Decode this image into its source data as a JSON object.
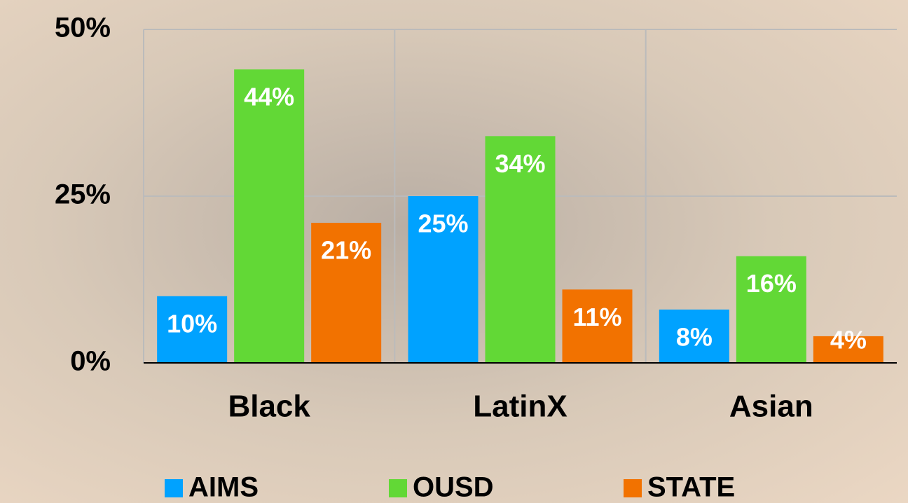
{
  "chart_data": {
    "type": "bar",
    "categories": [
      "Black",
      "LatinX",
      "Asian"
    ],
    "series": [
      {
        "name": "AIMS",
        "color": "#00a2ff",
        "values": [
          10,
          25,
          8
        ],
        "value_labels": [
          "10%",
          "25%",
          "8%"
        ]
      },
      {
        "name": "OUSD",
        "color": "#62d836",
        "values": [
          44,
          34,
          16
        ],
        "value_labels": [
          "44%",
          "34%",
          "16%"
        ]
      },
      {
        "name": "STATE",
        "color": "#f27200",
        "values": [
          21,
          11,
          4
        ],
        "value_labels": [
          "21%",
          "11%",
          "4%"
        ]
      }
    ],
    "ylim": [
      0,
      50
    ],
    "yticks": [
      {
        "value": 0,
        "label": "0%"
      },
      {
        "value": 25,
        "label": "25%"
      },
      {
        "value": 50,
        "label": "50%"
      }
    ],
    "grid": true,
    "legend": "bottom"
  }
}
